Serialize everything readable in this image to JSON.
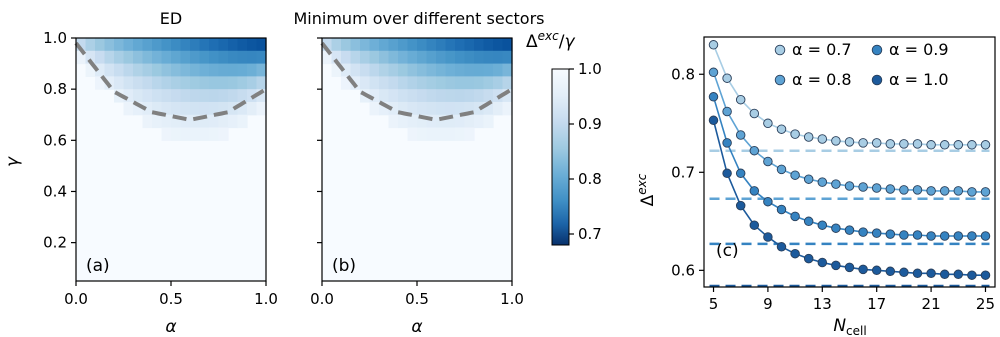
{
  "chart_data": [
    {
      "type": "heatmap",
      "title": "ED",
      "panel_label": "(a)",
      "xlabel": "α",
      "ylabel": "γ",
      "xlim": [
        0.0,
        1.0
      ],
      "ylim": [
        0.05,
        1.0
      ],
      "x_ticks": [
        "0.0",
        "0.5",
        "1.0"
      ],
      "y_ticks": [
        "0.2",
        "0.4",
        "0.6",
        "0.8",
        "1.0"
      ],
      "boundary_curve": {
        "style": "dashed",
        "color": "#808080",
        "x": [
          0.0,
          0.2,
          0.4,
          0.6,
          0.8,
          1.0
        ],
        "y": [
          0.98,
          0.79,
          0.71,
          0.68,
          0.71,
          0.8
        ]
      }
    },
    {
      "type": "heatmap",
      "title": "Minimum over different sectors",
      "panel_label": "(b)",
      "xlabel": "α",
      "ylabel": "",
      "xlim": [
        0.0,
        1.0
      ],
      "ylim": [
        0.05,
        1.0
      ],
      "x_ticks": [
        "0.0",
        "0.5",
        "1.0"
      ],
      "colorbar": {
        "label": "Δ^exc/γ",
        "min": 0.68,
        "max": 1.0,
        "ticks": [
          "1.0",
          "0.9",
          "0.8",
          "0.7"
        ],
        "colormap": "Blues_r"
      },
      "boundary_curve": {
        "style": "dashed",
        "color": "#808080",
        "x": [
          0.0,
          0.2,
          0.4,
          0.6,
          0.8,
          1.0
        ],
        "y": [
          0.98,
          0.79,
          0.71,
          0.68,
          0.71,
          0.8
        ]
      }
    },
    {
      "type": "line",
      "panel_label": "(c)",
      "xlabel": "N_cell",
      "ylabel": "Δ^exc",
      "xlim": [
        4.3,
        25.7
      ],
      "ylim": [
        0.583,
        0.838
      ],
      "x_ticks": [
        "5",
        "9",
        "13",
        "17",
        "21",
        "25"
      ],
      "y_ticks": [
        "0.6",
        "0.7",
        "0.8"
      ],
      "x": [
        5,
        6,
        7,
        8,
        9,
        10,
        11,
        12,
        13,
        14,
        15,
        16,
        17,
        18,
        19,
        20,
        21,
        22,
        23,
        24,
        25
      ],
      "series": [
        {
          "name": "α = 0.7",
          "color": "#a8cde4",
          "asymptote": 0.722,
          "values": [
            0.83,
            0.796,
            0.774,
            0.76,
            0.75,
            0.744,
            0.739,
            0.736,
            0.734,
            0.732,
            0.731,
            0.73,
            0.73,
            0.729,
            0.729,
            0.729,
            0.728,
            0.728,
            0.728,
            0.728,
            0.728
          ]
        },
        {
          "name": "α = 0.8",
          "color": "#5ea3d4",
          "asymptote": 0.673,
          "values": [
            0.802,
            0.762,
            0.738,
            0.722,
            0.711,
            0.703,
            0.697,
            0.693,
            0.69,
            0.688,
            0.686,
            0.685,
            0.684,
            0.683,
            0.682,
            0.682,
            0.681,
            0.681,
            0.681,
            0.68,
            0.68
          ]
        },
        {
          "name": "α = 0.9",
          "color": "#3583c1",
          "asymptote": 0.627,
          "values": [
            0.777,
            0.73,
            0.699,
            0.681,
            0.67,
            0.662,
            0.655,
            0.65,
            0.646,
            0.643,
            0.641,
            0.639,
            0.638,
            0.637,
            0.636,
            0.636,
            0.635,
            0.635,
            0.635,
            0.635,
            0.635
          ]
        },
        {
          "name": "α = 1.0",
          "color": "#1c5a9c",
          "asymptote": 0.584,
          "values": [
            0.753,
            0.699,
            0.666,
            0.646,
            0.634,
            0.624,
            0.617,
            0.612,
            0.608,
            0.605,
            0.603,
            0.601,
            0.6,
            0.599,
            0.598,
            0.597,
            0.597,
            0.596,
            0.596,
            0.595,
            0.595
          ]
        }
      ],
      "legend": {
        "placement": "top-right",
        "columns": 2
      }
    }
  ]
}
